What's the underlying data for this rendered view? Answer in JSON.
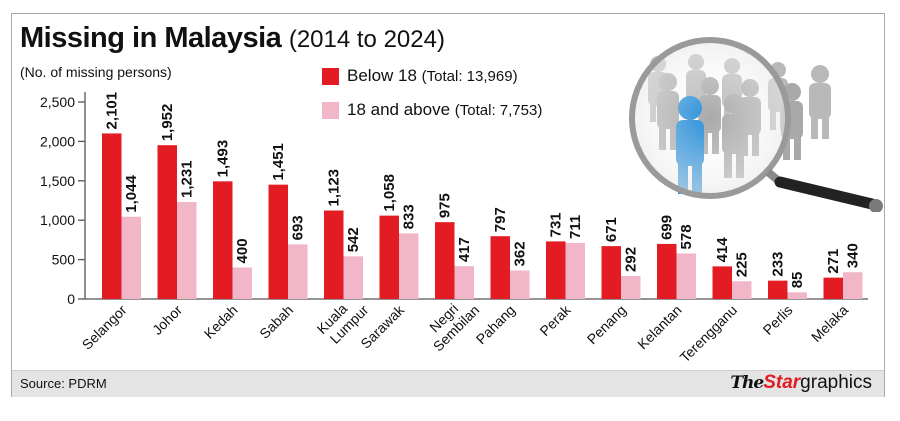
{
  "header": {
    "title": "Missing in Malaysia",
    "subtitle": "(2014 to 2024)",
    "y_unit_label": "(No. of missing persons)"
  },
  "legend": {
    "items": [
      {
        "label": "Below 18",
        "total": "(Total: 13,969)",
        "color": "#e31b23"
      },
      {
        "label": "18 and above",
        "total": "(Total: 7,753)",
        "color": "#f1b7c8"
      }
    ]
  },
  "footer": {
    "source": "Source: PDRM",
    "brand_the": "The",
    "brand_star": "Star",
    "brand_graphics": "graphics"
  },
  "illustration": {
    "description": "magnifying-glass-over-crowd"
  },
  "chart_data": {
    "type": "bar",
    "title": "Missing in Malaysia (2014 to 2024)",
    "xlabel": "",
    "ylabel": "(No. of missing persons)",
    "ylim": [
      0,
      2500
    ],
    "yticks": [
      0,
      500,
      1000,
      1500,
      2000,
      2500
    ],
    "ytick_labels": [
      "0",
      "500",
      "1,000",
      "1,500",
      "2,000",
      "2,500"
    ],
    "grid": false,
    "legend_position": "top-center",
    "categories": [
      "Selangor",
      "Johor",
      "Kedah",
      "Sabah",
      "Kuala Lumpur",
      "Sarawak",
      "Negri Sembilan",
      "Pahang",
      "Perak",
      "Penang",
      "Kelantan",
      "Terengganu",
      "Perlis",
      "Melaka"
    ],
    "series": [
      {
        "name": "Below 18 (Total: 13,969)",
        "color": "#e31b23",
        "values": [
          2101,
          1952,
          1493,
          1451,
          1123,
          1058,
          975,
          797,
          731,
          671,
          699,
          414,
          233,
          271
        ]
      },
      {
        "name": "18 and above (Total: 7,753)",
        "color": "#f1b7c8",
        "values": [
          1044,
          1231,
          400,
          693,
          542,
          833,
          417,
          362,
          711,
          292,
          578,
          225,
          85,
          340
        ]
      }
    ],
    "annotations": "Each bar labeled with its value, rotated vertically"
  }
}
